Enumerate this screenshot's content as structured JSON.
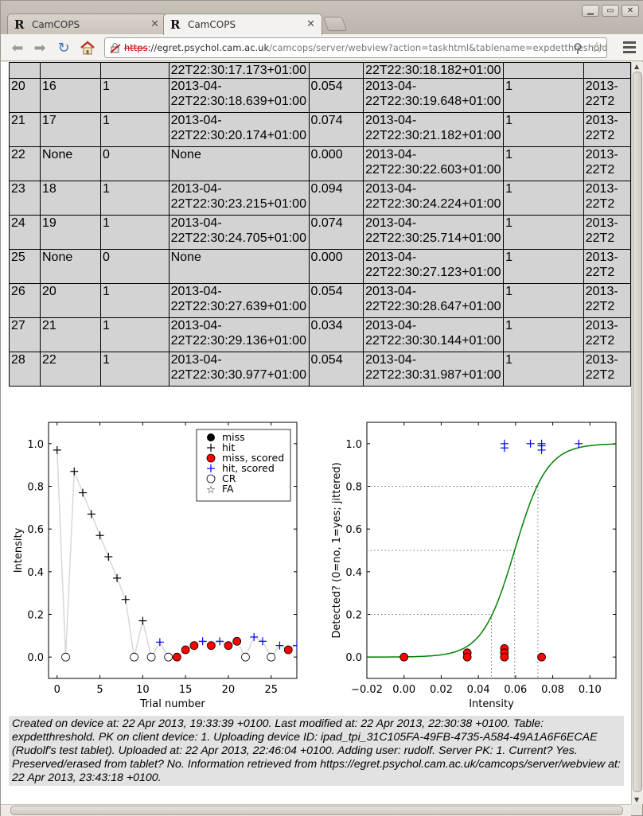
{
  "browser": {
    "tabs": [
      {
        "label": "CamCOPS",
        "active": false
      },
      {
        "label": "CamCOPS",
        "active": true
      }
    ],
    "url": {
      "scheme": "https",
      "host": "://egret.psychol.cam.ac.uk",
      "path": "/camcops/server/webview?action=taskhtml&tablename=expdetthreshold&serve"
    }
  },
  "table": {
    "rows": [
      [
        "",
        "",
        "",
        "22T22:30:17.173+01:00",
        "",
        "22T22:30:18.182+01:00",
        "",
        ""
      ],
      [
        "20",
        "16",
        "1",
        "2013-04-\n22T22:30:18.639+01:00",
        "0.054",
        "2013-04-\n22T22:30:19.648+01:00",
        "1",
        "2013-\n22T2"
      ],
      [
        "21",
        "17",
        "1",
        "2013-04-\n22T22:30:20.174+01:00",
        "0.074",
        "2013-04-\n22T22:30:21.182+01:00",
        "1",
        "2013-\n22T2"
      ],
      [
        "22",
        "None",
        "0",
        "None",
        "0.000",
        "2013-04-\n22T22:30:22.603+01:00",
        "1",
        "2013-\n22T2"
      ],
      [
        "23",
        "18",
        "1",
        "2013-04-\n22T22:30:23.215+01:00",
        "0.094",
        "2013-04-\n22T22:30:24.224+01:00",
        "1",
        "2013-\n22T2"
      ],
      [
        "24",
        "19",
        "1",
        "2013-04-\n22T22:30:24.705+01:00",
        "0.074",
        "2013-04-\n22T22:30:25.714+01:00",
        "1",
        "2013-\n22T2"
      ],
      [
        "25",
        "None",
        "0",
        "None",
        "0.000",
        "2013-04-\n22T22:30:27.123+01:00",
        "1",
        "2013-\n22T2"
      ],
      [
        "26",
        "20",
        "1",
        "2013-04-\n22T22:30:27.639+01:00",
        "0.054",
        "2013-04-\n22T22:30:28.647+01:00",
        "1",
        "2013-\n22T2"
      ],
      [
        "27",
        "21",
        "1",
        "2013-04-\n22T22:30:29.136+01:00",
        "0.034",
        "2013-04-\n22T22:30:30.144+01:00",
        "1",
        "2013-\n22T2"
      ],
      [
        "28",
        "22",
        "1",
        "2013-04-\n22T22:30:30.977+01:00",
        "0.054",
        "2013-04-\n22T22:30:31.987+01:00",
        "1",
        "2013-\n22T2"
      ]
    ]
  },
  "chart_data": [
    {
      "type": "line",
      "xlabel": "Trial number",
      "ylabel": "Intensity",
      "xlim": [
        -1,
        28
      ],
      "ylim": [
        -0.1,
        1.1
      ],
      "xticks": [
        "0",
        "5",
        "10",
        "15",
        "20",
        "25"
      ],
      "yticks": [
        "0.0",
        "0.2",
        "0.4",
        "0.6",
        "0.8",
        "1.0"
      ],
      "legend": {
        "placement": "top-right",
        "entries": [
          "miss",
          "hit",
          "miss, scored",
          "hit, scored",
          "CR",
          "FA"
        ]
      },
      "trials": [
        {
          "x": 0,
          "y": 0.97,
          "kind": "hit"
        },
        {
          "x": 1,
          "y": 0.0,
          "kind": "CR"
        },
        {
          "x": 2,
          "y": 0.87,
          "kind": "hit"
        },
        {
          "x": 3,
          "y": 0.77,
          "kind": "hit"
        },
        {
          "x": 4,
          "y": 0.67,
          "kind": "hit"
        },
        {
          "x": 5,
          "y": 0.57,
          "kind": "hit"
        },
        {
          "x": 6,
          "y": 0.47,
          "kind": "hit"
        },
        {
          "x": 7,
          "y": 0.37,
          "kind": "hit"
        },
        {
          "x": 8,
          "y": 0.27,
          "kind": "hit"
        },
        {
          "x": 9,
          "y": 0.0,
          "kind": "CR"
        },
        {
          "x": 10,
          "y": 0.17,
          "kind": "hit"
        },
        {
          "x": 11,
          "y": 0.0,
          "kind": "CR"
        },
        {
          "x": 12,
          "y": 0.07,
          "kind": "hit, scored"
        },
        {
          "x": 13,
          "y": 0.0,
          "kind": "CR"
        },
        {
          "x": 14,
          "y": 0.0,
          "kind": "miss, scored"
        },
        {
          "x": 15,
          "y": 0.034,
          "kind": "miss, scored"
        },
        {
          "x": 16,
          "y": 0.054,
          "kind": "miss, scored"
        },
        {
          "x": 17,
          "y": 0.074,
          "kind": "hit, scored"
        },
        {
          "x": 18,
          "y": 0.054,
          "kind": "miss, scored"
        },
        {
          "x": 19,
          "y": 0.074,
          "kind": "hit, scored"
        },
        {
          "x": 20,
          "y": 0.054,
          "kind": "miss, scored"
        },
        {
          "x": 21,
          "y": 0.074,
          "kind": "miss, scored"
        },
        {
          "x": 22,
          "y": 0.0,
          "kind": "CR"
        },
        {
          "x": 23,
          "y": 0.094,
          "kind": "hit, scored"
        },
        {
          "x": 24,
          "y": 0.074,
          "kind": "hit, scored"
        },
        {
          "x": 25,
          "y": 0.0,
          "kind": "CR"
        },
        {
          "x": 26,
          "y": 0.054,
          "kind": "hit, scored"
        },
        {
          "x": 27,
          "y": 0.034,
          "kind": "miss, scored"
        },
        {
          "x": 28,
          "y": 0.054,
          "kind": "hit, scored"
        }
      ],
      "colors": {
        "line": "#d8d8d8",
        "hit": "#000000",
        "hit_scored": "#0000ff",
        "miss_scored": "#ff0000"
      }
    },
    {
      "type": "scatter",
      "xlabel": "Intensity",
      "ylabel": "Detected? (0=no, 1=yes; jittered)",
      "xlim": [
        -0.02,
        0.114
      ],
      "ylim": [
        -0.1,
        1.1
      ],
      "xticks": [
        "−0.02",
        "0.00",
        "0.02",
        "0.04",
        "0.06",
        "0.08",
        "0.10"
      ],
      "yticks": [
        "0.0",
        "0.2",
        "0.4",
        "0.6",
        "0.8",
        "1.0"
      ],
      "hits": [
        {
          "x": 0.054,
          "y": 1.0
        },
        {
          "x": 0.054,
          "y": 0.98
        },
        {
          "x": 0.068,
          "y": 1.0
        },
        {
          "x": 0.074,
          "y": 0.99
        },
        {
          "x": 0.074,
          "y": 0.97
        },
        {
          "x": 0.074,
          "y": 1.0
        },
        {
          "x": 0.094,
          "y": 1.0
        }
      ],
      "misses": [
        {
          "x": 0.0,
          "y": 0.0
        },
        {
          "x": 0.034,
          "y": 0.02
        },
        {
          "x": 0.034,
          "y": 0.0
        },
        {
          "x": 0.054,
          "y": 0.04
        },
        {
          "x": 0.054,
          "y": 0.02
        },
        {
          "x": 0.054,
          "y": 0.0
        },
        {
          "x": 0.074,
          "y": 0.0
        }
      ],
      "logistic": {
        "x50": 0.0595,
        "slope": 115
      },
      "thresholds": [
        {
          "p": 0.2,
          "x": 0.047
        },
        {
          "p": 0.5,
          "x": 0.0595
        },
        {
          "p": 0.8,
          "x": 0.072
        }
      ],
      "colors": {
        "curve": "#008000",
        "hit": "#0000ff",
        "miss": "#ff0000",
        "threshold": "#777777"
      }
    }
  ],
  "caption": "Created on device at: 22 Apr 2013, 19:33:39 +0100. Last modified at: 22 Apr 2013, 22:30:38 +0100. Table: expdetthreshold. PK on client device: 1. Uploading device ID: ipad_tpi_31C105FA-49FB-4735-A584-49A1A6F6ECAE (Rudolf's test tablet). Uploaded at: 22 Apr 2013, 22:46:04 +0100. Adding user: rudolf. Server PK: 1. Current? Yes. Preserved/erased from tablet? No. Information retrieved from https://egret.psychol.cam.ac.uk/camcops/server/webview at: 22 Apr 2013, 23:43:18 +0100."
}
